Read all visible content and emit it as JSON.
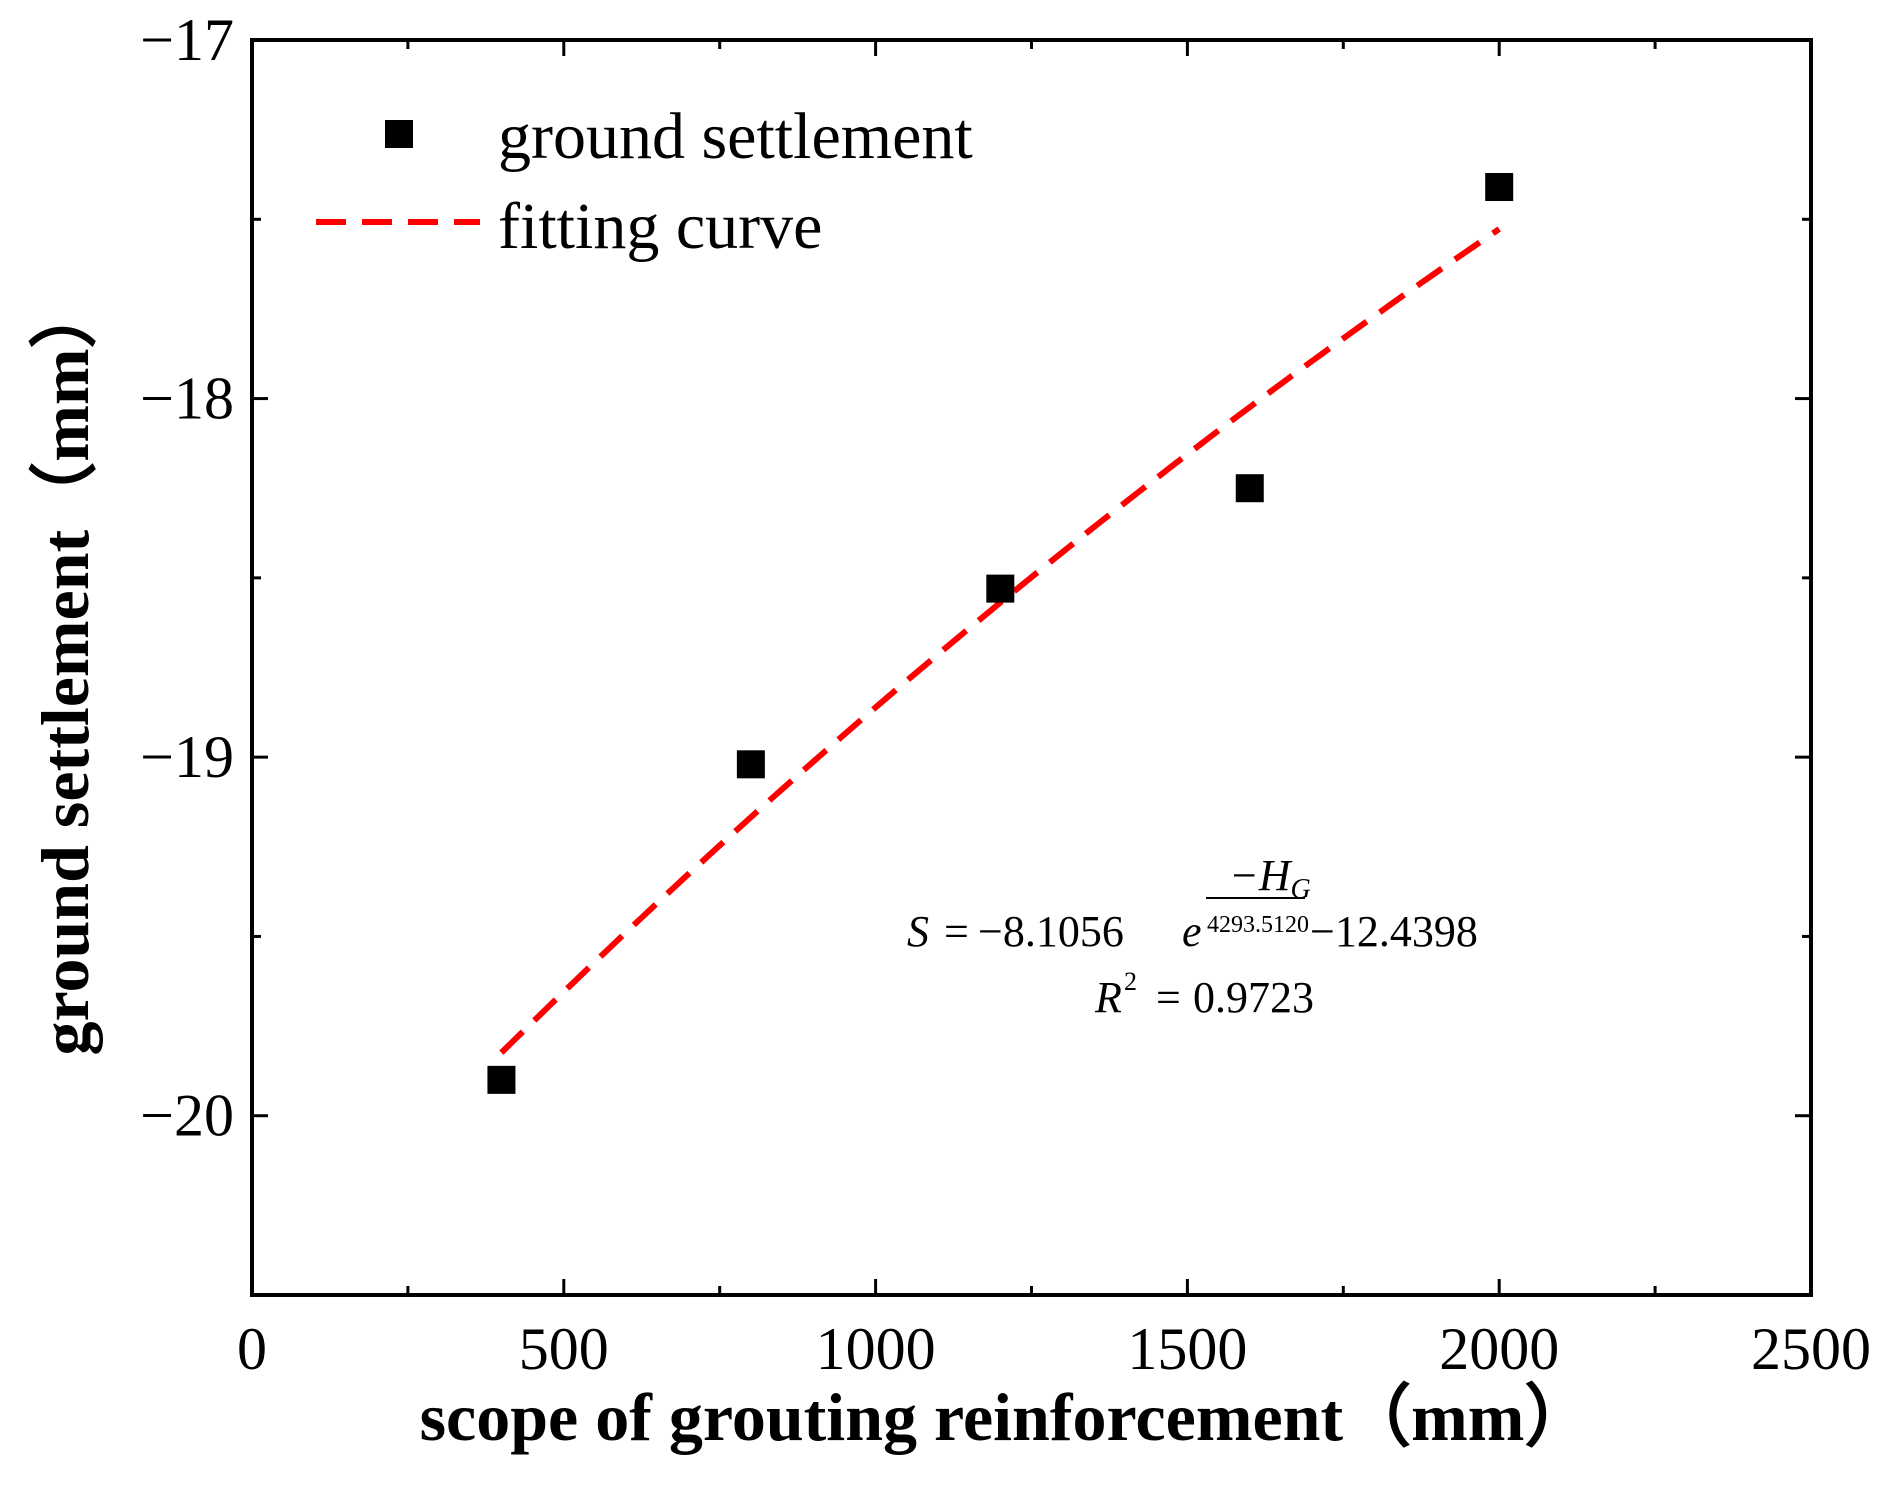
{
  "chart_data": {
    "type": "scatter",
    "xlabel": "scope of grouting reinforcement（mm）",
    "ylabel": "ground settlement（mm）",
    "xlim": [
      0,
      2500
    ],
    "ylim": [
      -20.5,
      -17
    ],
    "x_ticks": [
      0,
      500,
      1000,
      1500,
      2000,
      2500
    ],
    "x_tick_labels": [
      "0",
      "500",
      "1000",
      "1500",
      "2000",
      "2500"
    ],
    "y_ticks": [
      -17,
      -18,
      -19,
      -20
    ],
    "y_tick_labels": [
      "−17",
      "−18",
      "−19",
      "−20"
    ],
    "grid": false,
    "legend_position": "top-left",
    "series": [
      {
        "name": "ground settlement",
        "kind": "scatter",
        "marker": "square",
        "color": "#000000",
        "x": [
          400,
          800,
          1200,
          1600,
          2000
        ],
        "y": [
          -19.9,
          -19.02,
          -18.53,
          -18.25,
          -17.41
        ]
      },
      {
        "name": "fitting curve",
        "kind": "line",
        "style": "dashed",
        "color": "#ff0000",
        "formula": {
          "a": -8.1056,
          "b": 4293.512,
          "c": -12.4398
        },
        "x_range": [
          400,
          2000
        ]
      }
    ],
    "annotation": {
      "lhs": "S",
      "eq_sign": "=",
      "coef": "−8.1056",
      "base": "e",
      "exp_numerator": "−H",
      "exp_numerator_sub": "G",
      "exp_denominator": "4293.5120",
      "constant": "−12.4398",
      "r2_symbol": "R",
      "r2_power": "2",
      "r2_eq": "=",
      "r2_value": "0.9723"
    }
  }
}
